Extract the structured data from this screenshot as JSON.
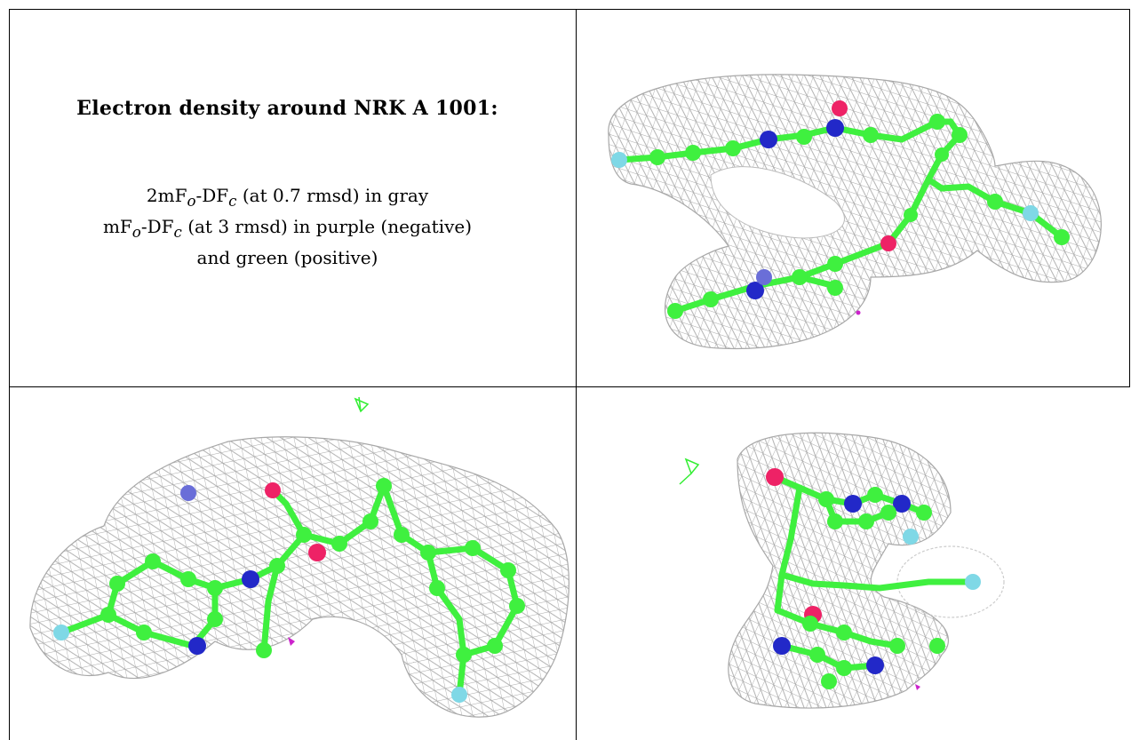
{
  "caption": {
    "title": "Electron density around NRK A 1001:",
    "line1": {
      "prefix": "2mF",
      "sub_o": "o",
      "mid": "-DF",
      "sub_c": "c",
      "suffix": " (at 0.7 rmsd) in gray"
    },
    "line2": {
      "prefix": "mF",
      "sub_o": "o",
      "mid": "-DF",
      "sub_c": "c",
      "suffix": " (at 3 rmsd) in purple (negative)"
    },
    "line3": "and green (positive)"
  },
  "colors": {
    "mesh": "#a8a8a8",
    "carbon": "#3ff03f",
    "nitrogen": "#2228c8",
    "oxygen": "#ee2266",
    "fluorine": "#7fd8e6",
    "positive_density": "#33ee33",
    "negative_density": "#cc22cc"
  }
}
